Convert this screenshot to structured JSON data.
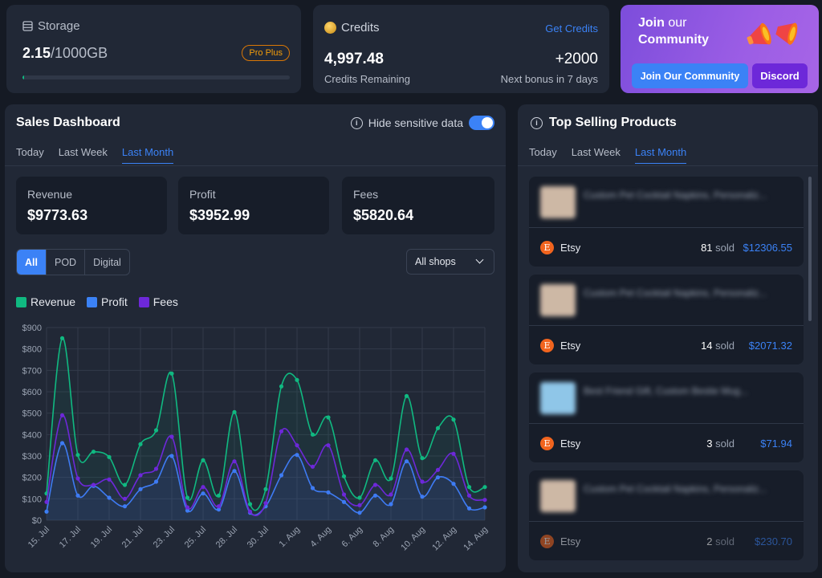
{
  "storage": {
    "title": "Storage",
    "used": "2.15",
    "total": "/1000GB",
    "badge": "Pro Plus",
    "progress_fraction": 0.00215
  },
  "credits": {
    "title": "Credits",
    "get_link": "Get Credits",
    "amount": "4,997.48",
    "amount_label": "Credits Remaining",
    "bonus": "+2000",
    "bonus_label": "Next bonus in 7 days"
  },
  "community": {
    "join": "Join",
    "our": " our",
    "community": "Community",
    "join_button": "Join Our Community",
    "discord_button": "Discord"
  },
  "sales": {
    "title": "Sales Dashboard",
    "hide_label": "Hide sensitive data",
    "tabs": [
      "Today",
      "Last Week",
      "Last Month"
    ],
    "stats": [
      {
        "label": "Revenue",
        "value": "$9773.63"
      },
      {
        "label": "Profit",
        "value": "$3952.99"
      },
      {
        "label": "Fees",
        "value": "$5820.64"
      }
    ],
    "filters": [
      "All",
      "POD",
      "Digital"
    ],
    "shops_select": "All shops",
    "legend": [
      {
        "name": "Revenue",
        "color": "#10b981"
      },
      {
        "name": "Profit",
        "color": "#3b82f6"
      },
      {
        "name": "Fees",
        "color": "#6d28d9"
      }
    ]
  },
  "chart_data": {
    "type": "line",
    "ylim": [
      0,
      900
    ],
    "yticks": [
      "$0",
      "$100",
      "$200",
      "$300",
      "$400",
      "$500",
      "$600",
      "$700",
      "$800",
      "$900"
    ],
    "xtick_labels": [
      "15. Jul",
      "17. Jul",
      "19. Jul",
      "21. Jul",
      "23. Jul",
      "25. Jul",
      "28. Jul",
      "30. Jul",
      "1. Aug",
      "4. Aug",
      "6. Aug",
      "8. Aug",
      "10. Aug",
      "12. Aug",
      "14. Aug"
    ],
    "series": [
      {
        "name": "Revenue",
        "color": "#10b981",
        "values": [
          125,
          850,
          305,
          320,
          295,
          165,
          355,
          420,
          685,
          105,
          280,
          115,
          505,
          75,
          145,
          625,
          655,
          400,
          480,
          205,
          105,
          280,
          195,
          580,
          290,
          430,
          470,
          155,
          155
        ]
      },
      {
        "name": "Profit",
        "color": "#3b82f6",
        "values": [
          40,
          360,
          115,
          160,
          105,
          65,
          145,
          180,
          300,
          45,
          125,
          50,
          230,
          35,
          65,
          210,
          305,
          150,
          130,
          85,
          35,
          115,
          75,
          275,
          110,
          200,
          170,
          55,
          60
        ]
      },
      {
        "name": "Fees",
        "color": "#6d28d9",
        "values": [
          85,
          490,
          195,
          165,
          190,
          100,
          210,
          240,
          390,
          60,
          155,
          65,
          275,
          40,
          80,
          415,
          350,
          250,
          350,
          120,
          70,
          165,
          120,
          330,
          180,
          235,
          310,
          115,
          95
        ]
      }
    ]
  },
  "top": {
    "title": "Top Selling Products",
    "tabs": [
      "Today",
      "Last Week",
      "Last Month"
    ],
    "products": [
      {
        "name": "Custom Pet Cocktail Napkins, Personaliz...",
        "shop": "Etsy",
        "sold": "81",
        "sold_label": " sold",
        "price": "$12306.55"
      },
      {
        "name": "Custom Pet Cocktail Napkins, Personaliz...",
        "shop": "Etsy",
        "sold": "14",
        "sold_label": " sold",
        "price": "$2071.32"
      },
      {
        "name": "Best Friend Gift, Custom Bestie Mug...",
        "shop": "Etsy",
        "sold": "3",
        "sold_label": " sold",
        "price": "$71.94"
      },
      {
        "name": "Custom Pet Cocktail Napkins, Personaliz...",
        "shop": "Etsy",
        "sold": "2",
        "sold_label": " sold",
        "price": "$230.70"
      }
    ]
  }
}
